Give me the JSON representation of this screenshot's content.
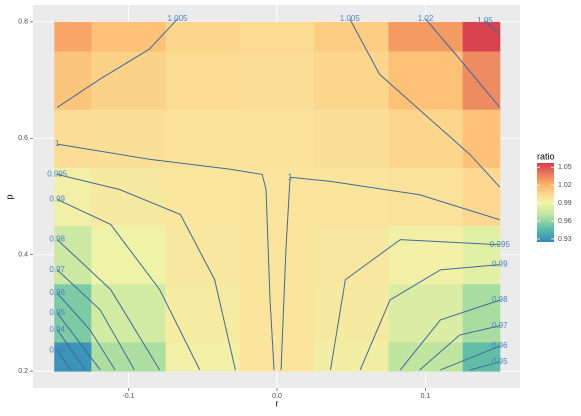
{
  "chart_data": {
    "type": "heatmap",
    "x_label": "r",
    "y_label": "p",
    "legend_title": "ratio",
    "x": [
      -0.15,
      -0.1,
      -0.05,
      0,
      0.05,
      0.1,
      0.15
    ],
    "y": [
      0.2,
      0.3,
      0.4,
      0.5,
      0.6,
      0.7,
      0.8
    ],
    "z": [
      [
        0.93,
        0.966,
        0.992,
        1.0,
        0.993,
        0.97,
        0.948
      ],
      [
        0.955,
        0.978,
        0.995,
        1.0,
        0.996,
        0.982,
        0.965
      ],
      [
        0.975,
        0.99,
        0.998,
        1.0,
        0.998,
        0.992,
        0.985
      ],
      [
        0.992,
        0.997,
        0.999,
        1.0,
        1.0,
        1.001,
        1.005
      ],
      [
        1.003,
        1.002,
        1.001,
        1.001,
        1.002,
        1.006,
        1.015
      ],
      [
        1.013,
        1.008,
        1.004,
        1.003,
        1.006,
        1.015,
        1.033
      ],
      [
        1.025,
        1.015,
        1.006,
        1.004,
        1.01,
        1.028,
        1.055
      ]
    ],
    "colorscale": [
      {
        "value": 0.925,
        "color": "#3288bd"
      },
      {
        "value": 0.95,
        "color": "#66c2a5"
      },
      {
        "value": 0.97,
        "color": "#bfe5a0"
      },
      {
        "value": 0.99,
        "color": "#eef3a8"
      },
      {
        "value": 1.0,
        "color": "#fbe49c"
      },
      {
        "value": 1.02,
        "color": "#fdb56a"
      },
      {
        "value": 1.057,
        "color": "#d53e4f"
      }
    ],
    "zlim": [
      0.925,
      1.057
    ],
    "zticks": [
      0.93,
      0.96,
      0.99,
      1.02,
      1.05
    ],
    "xlim": [
      -0.1643,
      0.1636
    ],
    "ylim": [
      0.171,
      0.829
    ],
    "xticks": [
      -0.1,
      {
        "value": 0,
        "label": "0.0"
      },
      0.1
    ],
    "yticks": [
      0.2,
      0.4,
      0.6,
      0.8
    ],
    "contour_color": "#3f6a9c",
    "contours": [
      {
        "level": 1.005,
        "r": [
          -0.067,
          -0.086,
          -0.119,
          -0.148
        ],
        "p": [
          0.805,
          0.753,
          0.702,
          0.653
        ]
      },
      {
        "level": 1.005,
        "r": [
          0.049,
          0.069,
          0.103,
          0.13,
          0.15
        ],
        "p": [
          0.805,
          0.71,
          0.633,
          0.572,
          0.516
        ]
      },
      {
        "level": 1.02,
        "r": [
          0.1,
          0.123,
          0.15
        ],
        "p": [
          0.805,
          0.736,
          0.653
        ]
      },
      {
        "level": 1.05,
        "r": [
          0.14,
          0.15
        ],
        "p": [
          0.802,
          0.779
        ]
      },
      {
        "level": 1,
        "r": [
          -0.148,
          -0.086,
          -0.032,
          -0.01,
          -0.0074,
          -0.0047,
          -0.002
        ],
        "p": [
          0.59,
          0.564,
          0.547,
          0.538,
          0.512,
          0.322,
          0.202
        ]
      },
      {
        "level": 1,
        "r": [
          0.0088,
          0.006,
          0.0027
        ],
        "p": [
          0.533,
          0.409,
          0.202
        ]
      },
      {
        "level": 1,
        "r": [
          0.0088,
          0.036,
          0.096,
          0.15
        ],
        "p": [
          0.533,
          0.526,
          0.503,
          0.46
        ]
      },
      {
        "level": 0.995,
        "r": [
          -0.148,
          -0.106,
          -0.065,
          -0.042,
          -0.028
        ],
        "p": [
          0.538,
          0.512,
          0.469,
          0.357,
          0.202
        ]
      },
      {
        "level": 0.99,
        "r": [
          -0.148,
          -0.112,
          -0.079,
          -0.052
        ],
        "p": [
          0.495,
          0.452,
          0.34,
          0.202
        ]
      },
      {
        "level": 0.98,
        "r": [
          -0.148,
          -0.112,
          -0.079
        ],
        "p": [
          0.426,
          0.34,
          0.202
        ]
      },
      {
        "level": 0.97,
        "r": [
          -0.148,
          -0.119,
          -0.096
        ],
        "p": [
          0.374,
          0.305,
          0.202
        ]
      },
      {
        "level": 0.96,
        "r": [
          -0.148,
          -0.126,
          -0.109
        ],
        "p": [
          0.334,
          0.271,
          0.202
        ]
      },
      {
        "level": 0.95,
        "r": [
          -0.148,
          -0.119
        ],
        "p": [
          0.3,
          0.202
        ]
      },
      {
        "level": 0.94,
        "r": [
          -0.148,
          -0.129
        ],
        "p": [
          0.271,
          0.202
        ]
      },
      {
        "level": 0.93,
        "r": [
          -0.148,
          -0.139
        ],
        "p": [
          0.236,
          0.202
        ]
      },
      {
        "level": 0.995,
        "r": [
          0.15,
          0.083,
          0.046,
          0.036
        ],
        "p": [
          0.417,
          0.426,
          0.357,
          0.202
        ]
      },
      {
        "level": 0.99,
        "r": [
          0.15,
          0.11,
          0.076,
          0.056
        ],
        "p": [
          0.383,
          0.374,
          0.322,
          0.202
        ]
      },
      {
        "level": 0.98,
        "r": [
          0.15,
          0.11,
          0.083
        ],
        "p": [
          0.322,
          0.288,
          0.202
        ]
      },
      {
        "level": 0.97,
        "r": [
          0.15,
          0.123,
          0.096
        ],
        "p": [
          0.278,
          0.262,
          0.202
        ]
      },
      {
        "level": 0.96,
        "r": [
          0.15,
          0.11
        ],
        "p": [
          0.243,
          0.202
        ]
      },
      {
        "level": 0.95,
        "r": [
          0.15,
          0.13
        ],
        "p": [
          0.216,
          0.202
        ]
      }
    ]
  }
}
